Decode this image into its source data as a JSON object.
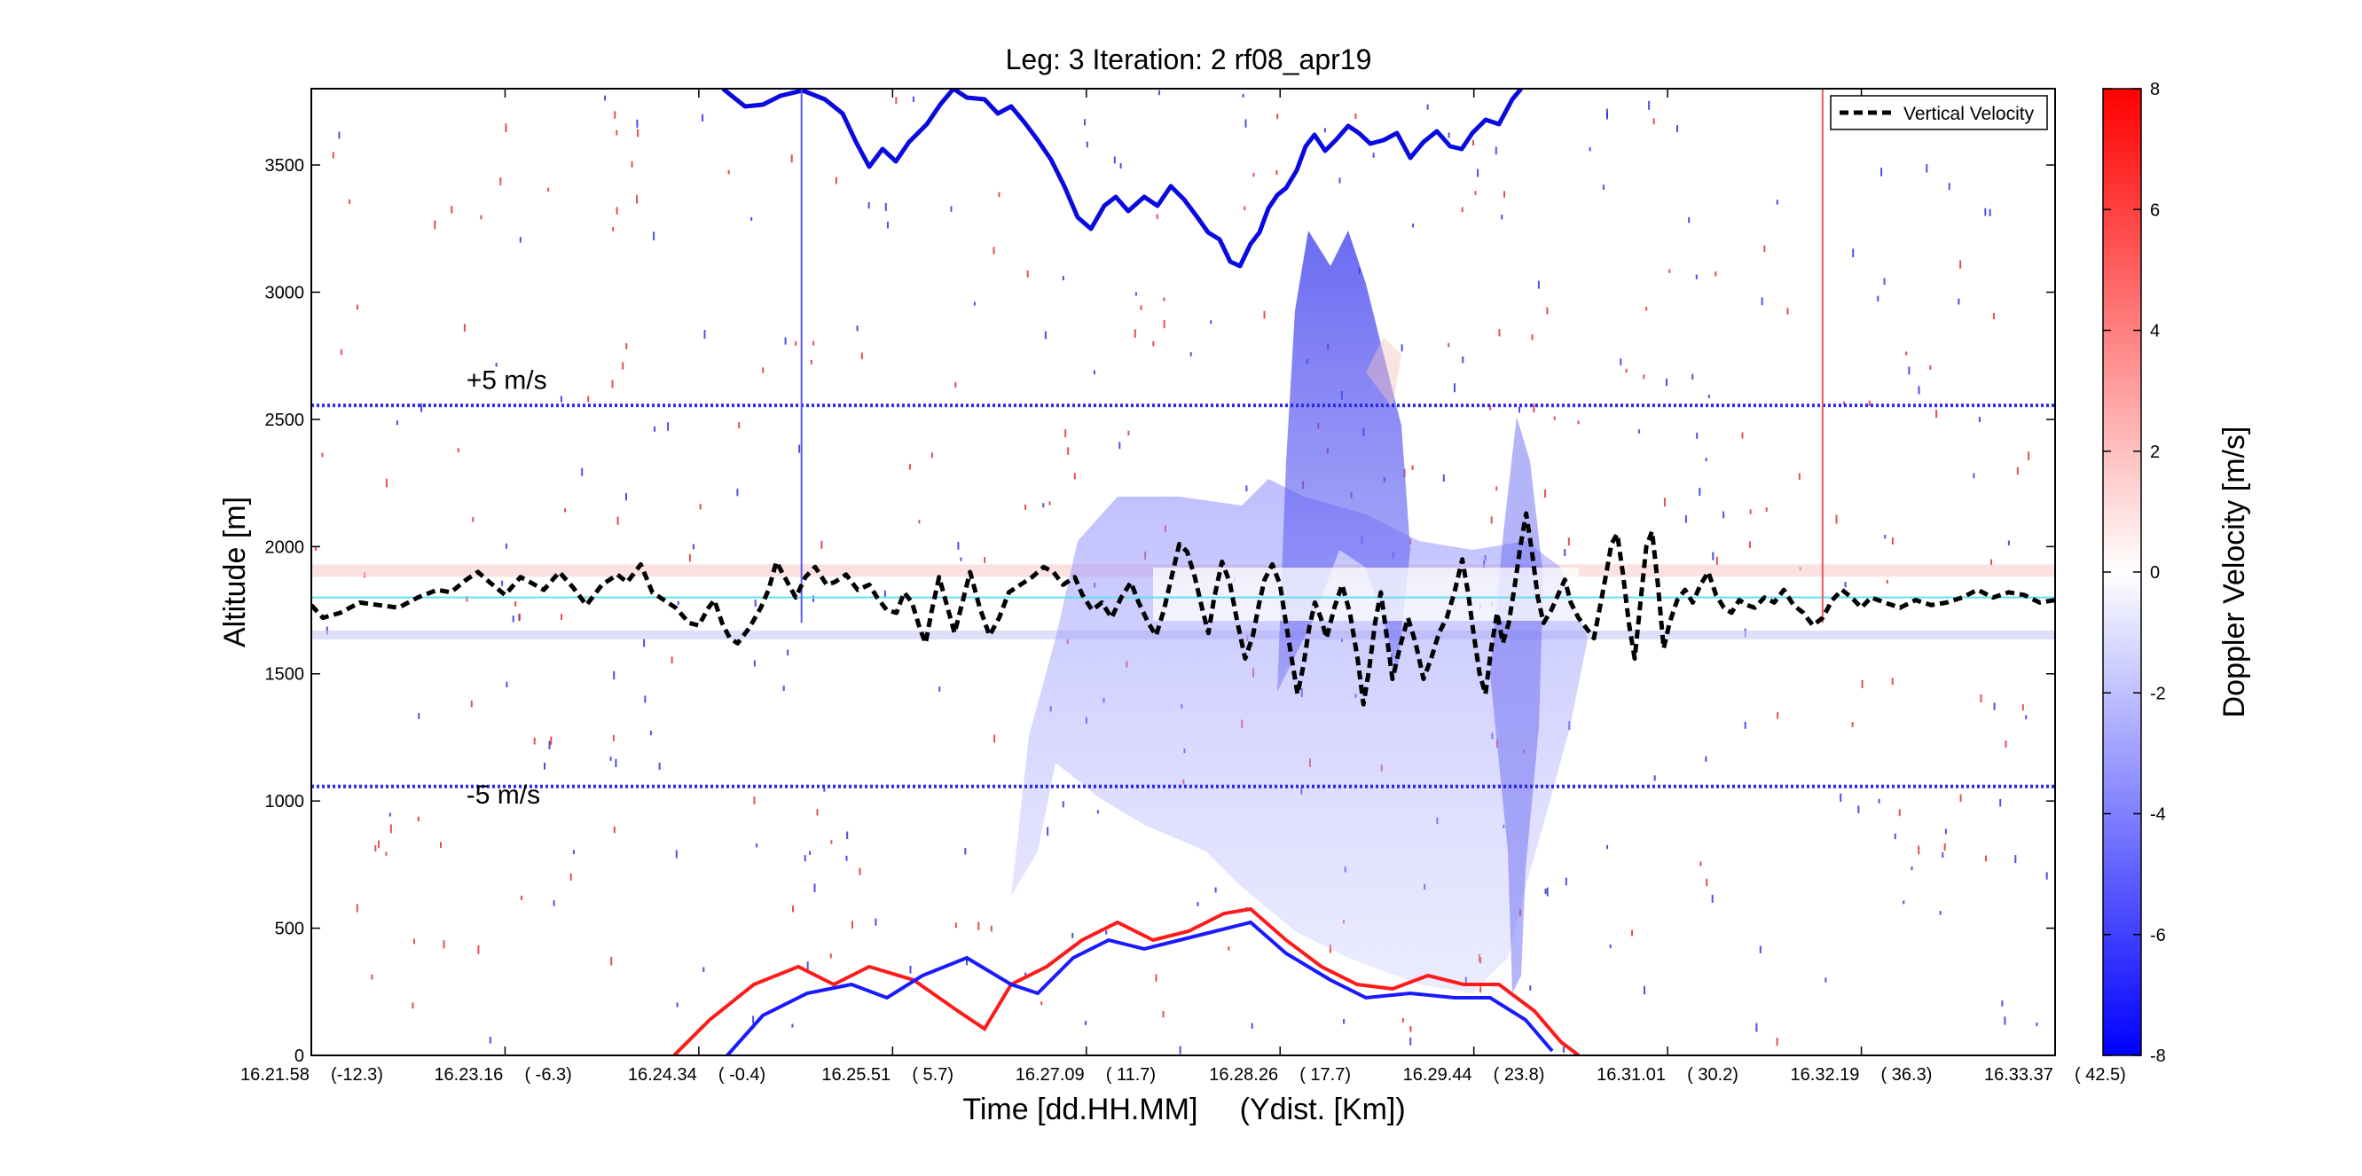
{
  "chart_data": {
    "type": "line",
    "title": "Leg: 3  Iteration: 2  rf08_apr19",
    "xlabel": "Time [dd.HH.MM]     (Ydist. [Km])",
    "ylabel": "Altitude [m]",
    "colorbar_label": "Doppler Velocity [m/s]",
    "colorbar_range": [
      -8,
      8
    ],
    "colorbar_ticks": [
      "8",
      "6",
      "4",
      "2",
      "0",
      "-2",
      "-4",
      "-6",
      "-8"
    ],
    "colormap": {
      "low": "#0000ff",
      "mid": "#ffffff",
      "high": "#ff0000"
    },
    "ylim": [
      0,
      3800
    ],
    "xlim": [
      0,
      9.0
    ],
    "y_ticks": [
      0,
      500,
      1000,
      1500,
      2000,
      2500,
      3000,
      3500
    ],
    "x_ticks": [
      {
        "x": 0.0,
        "time": "16.21.58",
        "dist": "(-12.3)"
      },
      {
        "x": 1.0,
        "time": "16.23.16",
        "dist": "( -6.3)"
      },
      {
        "x": 2.0,
        "time": "16.24.34",
        "dist": "( -0.4)"
      },
      {
        "x": 3.0,
        "time": "16.25.51",
        "dist": "(  5.7)"
      },
      {
        "x": 4.0,
        "time": "16.27.09",
        "dist": "( 11.7)"
      },
      {
        "x": 5.0,
        "time": "16.28.26",
        "dist": "( 17.7)"
      },
      {
        "x": 6.0,
        "time": "16.29.44",
        "dist": "( 23.8)"
      },
      {
        "x": 7.0,
        "time": "16.31.01",
        "dist": "( 30.2)"
      },
      {
        "x": 8.0,
        "time": "16.32.19",
        "dist": "( 36.3)"
      },
      {
        "x": 9.0,
        "time": "16.33.37",
        "dist": "( 42.5)"
      }
    ],
    "annotations": [
      {
        "text": "+5 m/s",
        "x": 0.8,
        "y": 2620
      },
      {
        "text": "-5 m/s",
        "x": 0.8,
        "y": 990
      }
    ],
    "reference_lines": [
      {
        "axis": "y",
        "value": 2555,
        "color": "#2a2aee",
        "style": "dotted"
      },
      {
        "axis": "y",
        "value": 1057,
        "color": "#2a2aee",
        "style": "dotted"
      },
      {
        "axis": "y",
        "value": 1800,
        "color": "#5fe0f0",
        "style": "solid"
      },
      {
        "axis": "x",
        "value": 2.53,
        "y_top": 3800,
        "y_bottom": 1700,
        "color": "#5a5aee"
      },
      {
        "axis": "x",
        "value": 7.8,
        "y_top": 3800,
        "y_bottom": 1700,
        "color": "#ee5a5a"
      }
    ],
    "legend": {
      "position": "top-right",
      "entries": [
        "Vertical Velocity"
      ]
    },
    "grid": false,
    "series": [
      {
        "name": "Vertical Velocity",
        "color": "#000000",
        "style": "dashed",
        "points": [
          [
            0.0,
            1770
          ],
          [
            0.06,
            1720
          ],
          [
            0.15,
            1740
          ],
          [
            0.25,
            1780
          ],
          [
            0.35,
            1770
          ],
          [
            0.45,
            1760
          ],
          [
            0.55,
            1800
          ],
          [
            0.65,
            1830
          ],
          [
            0.72,
            1820
          ],
          [
            0.8,
            1870
          ],
          [
            0.86,
            1900
          ],
          [
            0.92,
            1860
          ],
          [
            1.0,
            1810
          ],
          [
            1.08,
            1880
          ],
          [
            1.13,
            1860
          ],
          [
            1.2,
            1830
          ],
          [
            1.28,
            1900
          ],
          [
            1.35,
            1840
          ],
          [
            1.42,
            1770
          ],
          [
            1.5,
            1850
          ],
          [
            1.58,
            1890
          ],
          [
            1.63,
            1860
          ],
          [
            1.7,
            1930
          ],
          [
            1.76,
            1820
          ],
          [
            1.82,
            1790
          ],
          [
            1.88,
            1760
          ],
          [
            1.95,
            1700
          ],
          [
            2.0,
            1690
          ],
          [
            2.05,
            1760
          ],
          [
            2.08,
            1790
          ],
          [
            2.12,
            1700
          ],
          [
            2.16,
            1640
          ],
          [
            2.2,
            1620
          ],
          [
            2.26,
            1680
          ],
          [
            2.32,
            1760
          ],
          [
            2.36,
            1830
          ],
          [
            2.4,
            1940
          ],
          [
            2.45,
            1870
          ],
          [
            2.5,
            1800
          ],
          [
            2.55,
            1880
          ],
          [
            2.6,
            1920
          ],
          [
            2.66,
            1850
          ],
          [
            2.7,
            1860
          ],
          [
            2.76,
            1890
          ],
          [
            2.82,
            1830
          ],
          [
            2.88,
            1850
          ],
          [
            2.92,
            1800
          ],
          [
            2.97,
            1750
          ],
          [
            3.02,
            1740
          ],
          [
            3.06,
            1820
          ],
          [
            3.1,
            1780
          ],
          [
            3.14,
            1680
          ],
          [
            3.17,
            1620
          ],
          [
            3.2,
            1740
          ],
          [
            3.24,
            1880
          ],
          [
            3.28,
            1770
          ],
          [
            3.32,
            1660
          ],
          [
            3.36,
            1780
          ],
          [
            3.4,
            1900
          ],
          [
            3.45,
            1760
          ],
          [
            3.5,
            1650
          ],
          [
            3.55,
            1720
          ],
          [
            3.6,
            1820
          ],
          [
            3.66,
            1850
          ],
          [
            3.72,
            1880
          ],
          [
            3.78,
            1920
          ],
          [
            3.83,
            1900
          ],
          [
            3.88,
            1850
          ],
          [
            3.94,
            1880
          ],
          [
            3.98,
            1810
          ],
          [
            4.03,
            1750
          ],
          [
            4.08,
            1780
          ],
          [
            4.13,
            1720
          ],
          [
            4.18,
            1800
          ],
          [
            4.23,
            1860
          ],
          [
            4.27,
            1780
          ],
          [
            4.32,
            1700
          ],
          [
            4.36,
            1650
          ],
          [
            4.4,
            1750
          ],
          [
            4.44,
            1880
          ],
          [
            4.48,
            2010
          ],
          [
            4.52,
            1980
          ],
          [
            4.56,
            1880
          ],
          [
            4.6,
            1750
          ],
          [
            4.63,
            1660
          ],
          [
            4.66,
            1800
          ],
          [
            4.7,
            1940
          ],
          [
            4.74,
            1860
          ],
          [
            4.78,
            1700
          ],
          [
            4.82,
            1560
          ],
          [
            4.86,
            1650
          ],
          [
            4.89,
            1770
          ],
          [
            4.92,
            1870
          ],
          [
            4.96,
            1930
          ],
          [
            5.0,
            1850
          ],
          [
            5.03,
            1700
          ],
          [
            5.06,
            1560
          ],
          [
            5.09,
            1420
          ],
          [
            5.12,
            1530
          ],
          [
            5.15,
            1680
          ],
          [
            5.18,
            1780
          ],
          [
            5.21,
            1720
          ],
          [
            5.24,
            1640
          ],
          [
            5.28,
            1760
          ],
          [
            5.32,
            1850
          ],
          [
            5.36,
            1740
          ],
          [
            5.4,
            1560
          ],
          [
            5.43,
            1380
          ],
          [
            5.46,
            1520
          ],
          [
            5.49,
            1700
          ],
          [
            5.52,
            1820
          ],
          [
            5.55,
            1650
          ],
          [
            5.58,
            1480
          ],
          [
            5.62,
            1610
          ],
          [
            5.66,
            1720
          ],
          [
            5.7,
            1620
          ],
          [
            5.74,
            1480
          ],
          [
            5.78,
            1560
          ],
          [
            5.82,
            1660
          ],
          [
            5.86,
            1720
          ],
          [
            5.9,
            1820
          ],
          [
            5.94,
            1950
          ],
          [
            5.97,
            1820
          ],
          [
            6.0,
            1650
          ],
          [
            6.03,
            1500
          ],
          [
            6.06,
            1420
          ],
          [
            6.09,
            1600
          ],
          [
            6.12,
            1740
          ],
          [
            6.15,
            1620
          ],
          [
            6.18,
            1700
          ],
          [
            6.21,
            1840
          ],
          [
            6.24,
            2000
          ],
          [
            6.27,
            2130
          ],
          [
            6.3,
            1980
          ],
          [
            6.33,
            1800
          ],
          [
            6.36,
            1700
          ],
          [
            6.4,
            1750
          ],
          [
            6.44,
            1820
          ],
          [
            6.47,
            1870
          ],
          [
            6.5,
            1780
          ],
          [
            6.54,
            1720
          ],
          [
            6.58,
            1680
          ],
          [
            6.62,
            1640
          ],
          [
            6.65,
            1760
          ],
          [
            6.68,
            1880
          ],
          [
            6.71,
            2010
          ],
          [
            6.74,
            2050
          ],
          [
            6.77,
            1890
          ],
          [
            6.8,
            1700
          ],
          [
            6.83,
            1560
          ],
          [
            6.86,
            1780
          ],
          [
            6.89,
            2000
          ],
          [
            6.92,
            2060
          ],
          [
            6.95,
            1850
          ],
          [
            6.98,
            1600
          ],
          [
            7.01,
            1700
          ],
          [
            7.05,
            1790
          ],
          [
            7.09,
            1830
          ],
          [
            7.13,
            1780
          ],
          [
            7.17,
            1850
          ],
          [
            7.21,
            1900
          ],
          [
            7.25,
            1810
          ],
          [
            7.29,
            1760
          ],
          [
            7.33,
            1740
          ],
          [
            7.37,
            1790
          ],
          [
            7.41,
            1770
          ],
          [
            7.45,
            1760
          ],
          [
            7.5,
            1800
          ],
          [
            7.55,
            1780
          ],
          [
            7.6,
            1830
          ],
          [
            7.65,
            1770
          ],
          [
            7.7,
            1740
          ],
          [
            7.75,
            1690
          ],
          [
            7.8,
            1720
          ],
          [
            7.85,
            1790
          ],
          [
            7.9,
            1830
          ],
          [
            7.95,
            1800
          ],
          [
            8.0,
            1760
          ],
          [
            8.05,
            1800
          ],
          [
            8.12,
            1780
          ],
          [
            8.2,
            1760
          ],
          [
            8.28,
            1790
          ],
          [
            8.36,
            1770
          ],
          [
            8.44,
            1780
          ],
          [
            8.52,
            1800
          ],
          [
            8.6,
            1830
          ],
          [
            8.68,
            1800
          ],
          [
            8.76,
            1820
          ],
          [
            8.84,
            1810
          ],
          [
            8.92,
            1780
          ],
          [
            9.0,
            1790
          ]
        ]
      }
    ]
  }
}
